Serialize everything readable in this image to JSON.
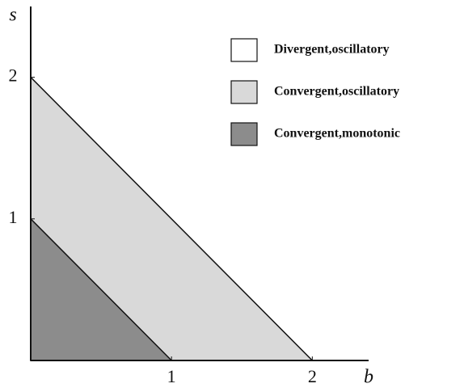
{
  "chart_data": {
    "type": "region",
    "xlabel": "b",
    "ylabel": "s",
    "xlim": [
      0,
      2.4
    ],
    "ylim": [
      0,
      2.5
    ],
    "xticks": [
      1,
      2
    ],
    "yticks": [
      1,
      2
    ],
    "series": [
      {
        "name": "Divergent,oscillatory",
        "color": "#ffffff"
      },
      {
        "name": "Convergent,oscillatory",
        "color": "#d9d9d9",
        "x": [
          0,
          2,
          0
        ],
        "y": [
          0,
          0,
          2
        ]
      },
      {
        "name": "Convergent,monotonic",
        "color": "#8c8c8c",
        "x": [
          0,
          1,
          0
        ],
        "y": [
          0,
          0,
          1
        ]
      }
    ]
  }
}
